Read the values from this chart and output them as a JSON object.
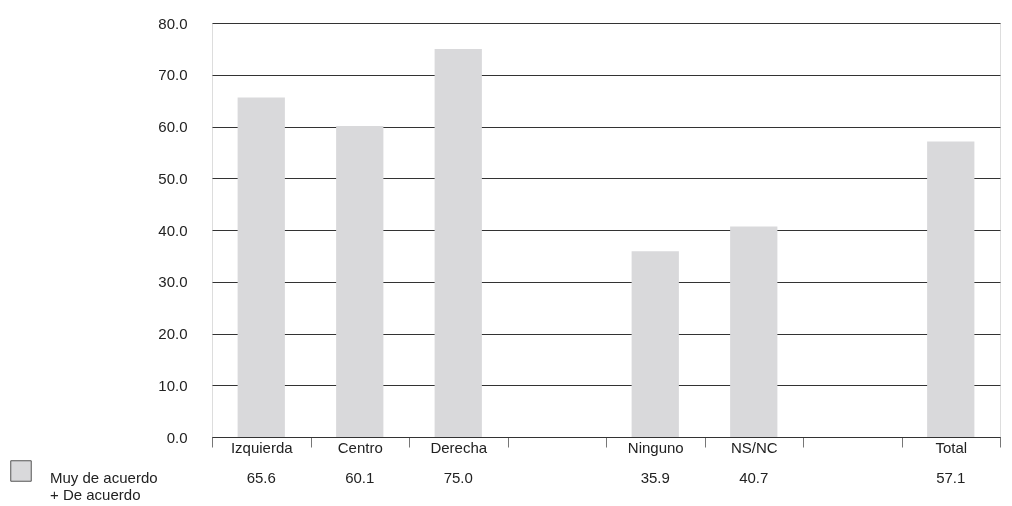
{
  "chart_data": {
    "type": "bar",
    "categories": [
      "Izquierda",
      "Centro",
      "Derecha",
      null,
      "Ninguno",
      "NS/NC",
      null,
      "Total"
    ],
    "series": [
      {
        "name": "Muy de acuerdo + De acuerdo",
        "color": "#d9d9db",
        "values": [
          65.6,
          60.1,
          75.0,
          null,
          35.9,
          40.7,
          null,
          57.1
        ],
        "value_labels": [
          "65.6",
          "60.1",
          "75.0",
          null,
          "35.9",
          "40.7",
          null,
          "57.1"
        ]
      }
    ],
    "ylim": [
      0,
      80
    ],
    "yticks": [
      {
        "value": 0,
        "label": "0.0"
      },
      {
        "value": 10,
        "label": "10.0"
      },
      {
        "value": 20,
        "label": "20.0"
      },
      {
        "value": 30,
        "label": "30.0"
      },
      {
        "value": 40,
        "label": "40.0"
      },
      {
        "value": 50,
        "label": "50.0"
      },
      {
        "value": 60,
        "label": "60.0"
      },
      {
        "value": 70,
        "label": "70.0"
      },
      {
        "value": 80,
        "label": "80.0"
      }
    ],
    "grid": "y",
    "legend": "bottom left"
  }
}
